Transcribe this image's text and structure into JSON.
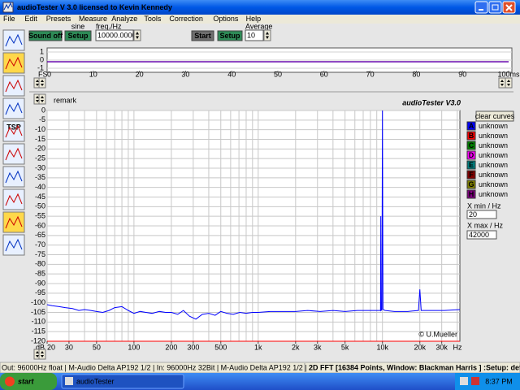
{
  "title_bar": {
    "title": "audioTester  V 3.0   licensed to Kevin Kennedy"
  },
  "menu": [
    "File",
    "Edit",
    "Presets",
    "Measure",
    "Analyze",
    "Tools",
    "Correction",
    "Options",
    "Help"
  ],
  "toolbar": {
    "tsp": "TSP"
  },
  "controls": {
    "sound_off": "Sound off",
    "setup_generator": "Setup",
    "waveform": "sine",
    "freq_label": "freq./Hz",
    "freq_value": "10000.0000",
    "start": "Start",
    "setup_analyzer": "Setup",
    "average_label": "Average",
    "average_value": "10"
  },
  "scope": {
    "fs_label": "FS",
    "ylim": [
      -1.5,
      1.5
    ],
    "yticks": [
      1,
      0,
      -1
    ],
    "xlim": [
      0,
      100
    ],
    "xticks": [
      0,
      10,
      20,
      30,
      40,
      50,
      60,
      70,
      80,
      90,
      {
        "value": 100,
        "label": "100ms"
      }
    ],
    "signal": {
      "color": "#6a0dad",
      "x": [
        0,
        100
      ],
      "values": [
        -0.2,
        -0.2
      ]
    }
  },
  "spectrum": {
    "remark": "remark",
    "brand": "audioTester  V3.0",
    "copyright": "© U.Mueller",
    "y_unit": "dB",
    "x_unit": "Hz",
    "log_x": true,
    "ylim": [
      -120,
      0
    ],
    "yticks": [
      0,
      -5,
      -10,
      -15,
      -20,
      -25,
      -30,
      -35,
      -40,
      -45,
      -50,
      -55,
      -60,
      -65,
      -70,
      -75,
      -80,
      -85,
      -90,
      -95,
      -100,
      -105,
      -110,
      -115,
      -120
    ],
    "xlim": [
      20,
      42000
    ],
    "xticks": [
      20,
      30,
      50,
      100,
      200,
      300,
      500,
      {
        "value": 1000,
        "label": "1k"
      },
      {
        "value": 2000,
        "label": "2k"
      },
      {
        "value": 3000,
        "label": "3k"
      },
      {
        "value": 5000,
        "label": "5k"
      },
      {
        "value": 10000,
        "label": "10k"
      },
      {
        "value": 20000,
        "label": "20k"
      },
      {
        "value": 30000,
        "label": "30k"
      }
    ],
    "xgrid": [
      20,
      30,
      40,
      50,
      60,
      70,
      80,
      90,
      100,
      200,
      300,
      400,
      500,
      600,
      700,
      800,
      900,
      1000,
      2000,
      3000,
      4000,
      5000,
      6000,
      7000,
      8000,
      9000,
      10000,
      20000,
      30000,
      40000
    ],
    "curves": [
      {
        "letter": "A",
        "name": "unknown",
        "color": "#0000ff",
        "x": [
          20,
          22,
          25,
          28,
          32,
          36,
          40,
          45,
          50,
          56,
          63,
          70,
          80,
          90,
          100,
          112,
          125,
          140,
          160,
          180,
          200,
          225,
          250,
          280,
          315,
          355,
          400,
          450,
          500,
          560,
          630,
          710,
          800,
          900,
          1000,
          1250,
          1600,
          2000,
          2500,
          3150,
          4000,
          5000,
          6300,
          8000,
          9500,
          9650,
          9700,
          9750,
          9900,
          10000,
          10100,
          10500,
          12500,
          16000,
          19500,
          20000,
          20500,
          25000,
          31500,
          42000
        ],
        "values": [
          -101,
          -101.5,
          -102,
          -102.5,
          -103,
          -104,
          -103.5,
          -104,
          -104.5,
          -105,
          -104,
          -102.5,
          -102,
          -104,
          -105.5,
          -104.5,
          -105,
          -105.5,
          -104.5,
          -105,
          -105,
          -106,
          -104,
          -107,
          -108.5,
          -106,
          -105.5,
          -106.5,
          -104.5,
          -105.5,
          -106,
          -105,
          -105.5,
          -105,
          -105,
          -104.5,
          -104.5,
          -104.5,
          -104,
          -104.5,
          -104,
          -104.5,
          -104,
          -104,
          -104,
          -104,
          -55,
          -104,
          -103.5,
          0,
          -103.5,
          -104,
          -104.5,
          -104.5,
          -104,
          -93,
          -104,
          -104,
          -104,
          -103.5
        ]
      },
      {
        "letter": "B",
        "name": "unknown",
        "color": "#ff0000",
        "x": [
          20,
          42000
        ],
        "values": [
          -120,
          -120
        ]
      },
      {
        "letter": "C",
        "name": "unknown",
        "color": "#008000"
      },
      {
        "letter": "D",
        "name": "unknown",
        "color": "#ff00ff"
      },
      {
        "letter": "E",
        "name": "unknown",
        "color": "#008080"
      },
      {
        "letter": "F",
        "name": "unknown",
        "color": "#800000"
      },
      {
        "letter": "G",
        "name": "unknown",
        "color": "#808000"
      },
      {
        "letter": "H",
        "name": "unknown",
        "color": "#800080"
      }
    ]
  },
  "side_panel": {
    "clear": "clear curves",
    "xmin_label": "X min / Hz",
    "xmin": "20",
    "xmax_label": "X max / Hz",
    "xmax": "42000"
  },
  "status": {
    "io": "Out: 96000Hz float | M-Audio Delta AP192 1/2 | In: 96000Hz 32Bit | M-Audio Delta AP192 1/2 |",
    "fft": "2D FFT [16384 Points, Window: Blackman Harris ]  :Setup: default"
  },
  "taskbar": {
    "start": "start",
    "task": "audioTester",
    "clock": "8:37 PM"
  }
}
